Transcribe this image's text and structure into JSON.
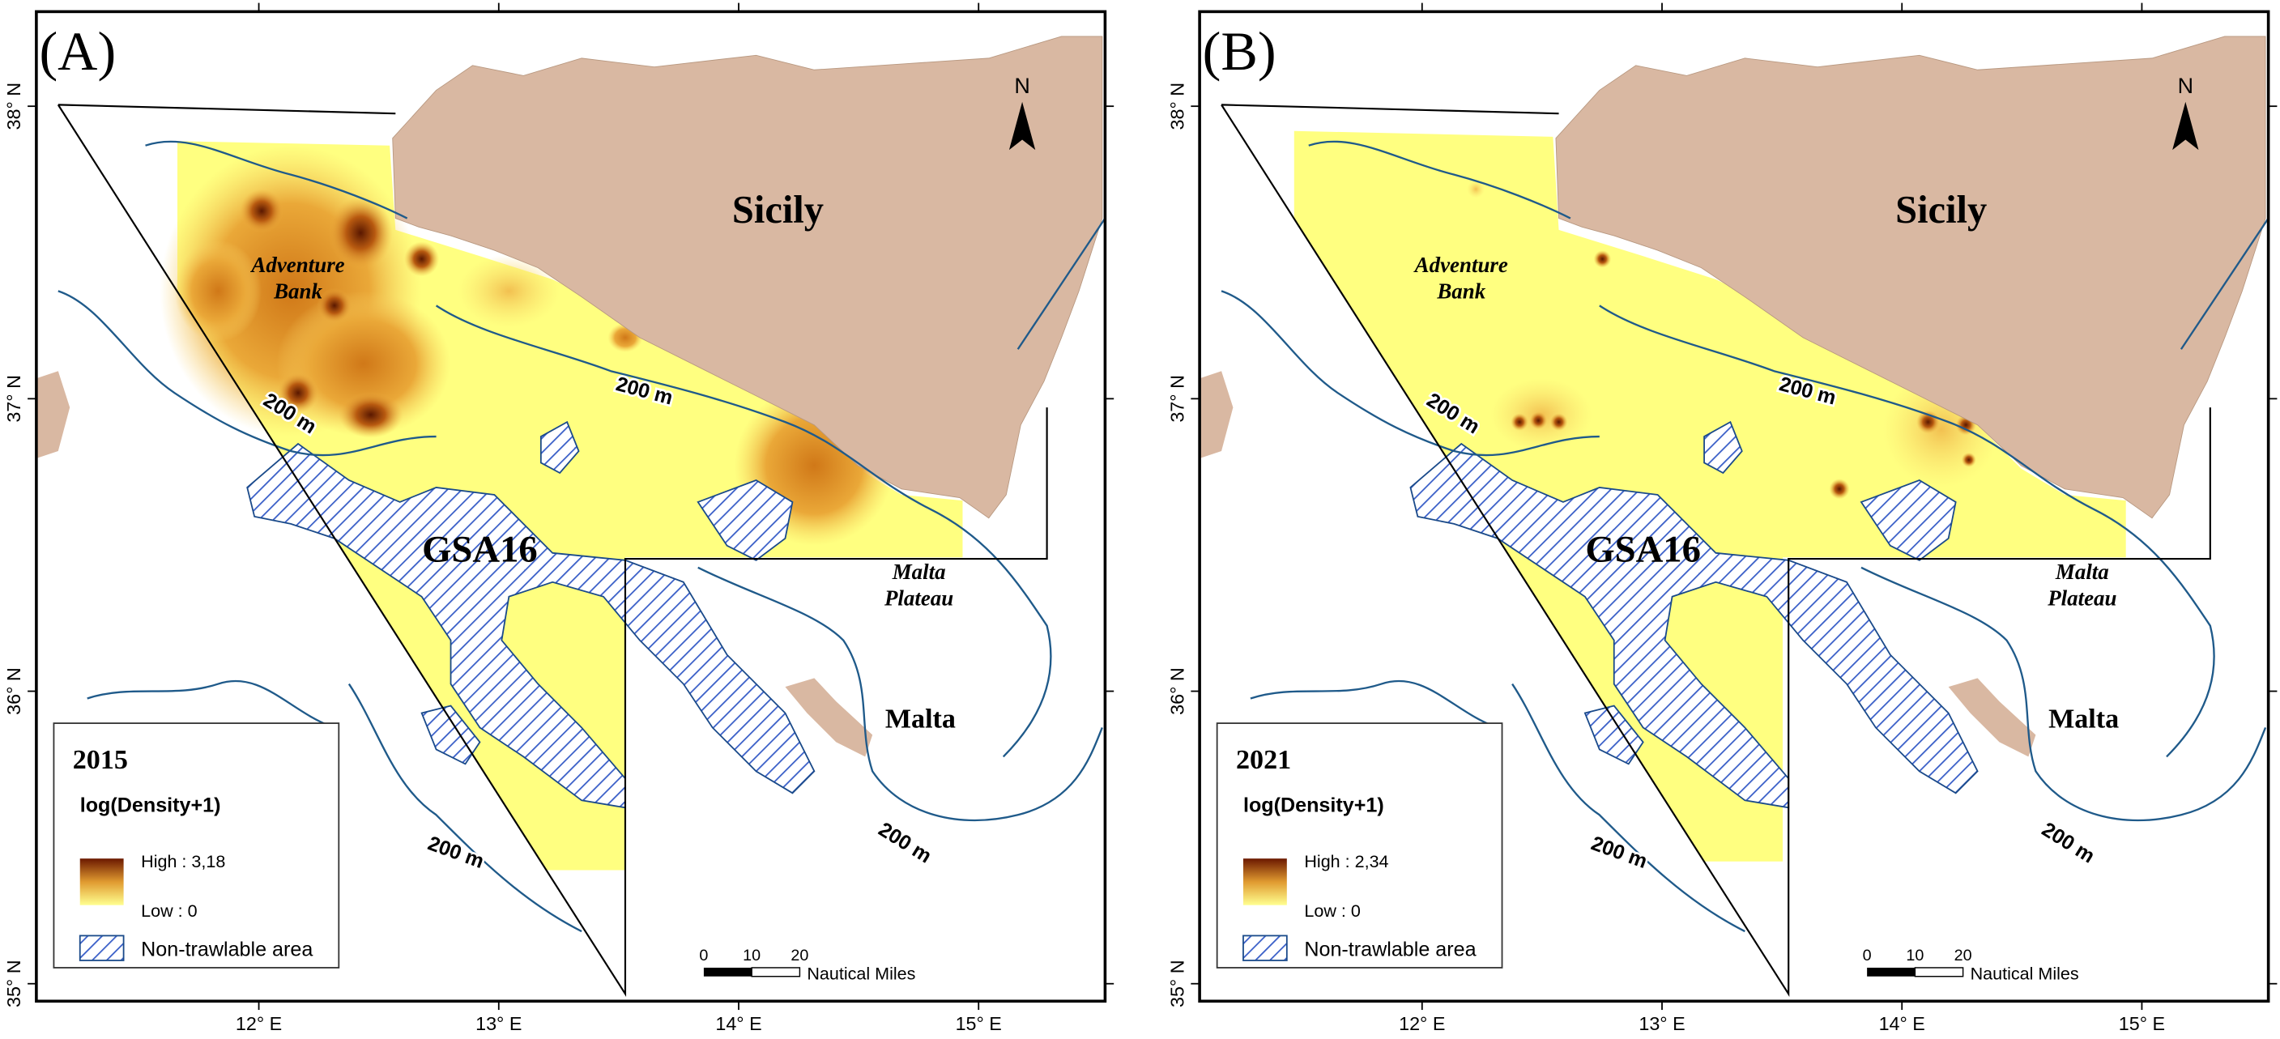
{
  "panels": [
    {
      "letter": "(A)",
      "places": {
        "sicily": "Sicily",
        "bank": [
          "Adventure",
          "Bank"
        ],
        "gsa": "GSA16",
        "plateau": [
          "Malta",
          "Plateau"
        ],
        "malta": "Malta"
      },
      "contours": [
        "200 m",
        "200 m",
        "200 m",
        "200 m"
      ],
      "north": "N",
      "legend": {
        "year": "2015",
        "title": "log(Density+1)",
        "high": "High : 3,18",
        "low": "Low : 0",
        "hatch": "Non-trawlable area"
      },
      "scale": {
        "ticks": [
          "0",
          "10",
          "20"
        ],
        "unit": "Nautical Miles"
      },
      "xticks": [
        {
          "value": 12,
          "label": "12° E"
        },
        {
          "value": 13,
          "label": "13° E"
        },
        {
          "value": 14,
          "label": "14° E"
        },
        {
          "value": 15,
          "label": "15° E"
        }
      ],
      "yticks": [
        {
          "value": 35,
          "label": "35° N"
        },
        {
          "value": 36,
          "label": "36° N"
        },
        {
          "value": 37,
          "label": "37° N"
        },
        {
          "value": 38,
          "label": "38° N"
        }
      ]
    },
    {
      "letter": "(B)",
      "places": {
        "sicily": "Sicily",
        "bank": [
          "Adventure",
          "Bank"
        ],
        "gsa": "GSA16",
        "plateau": [
          "Malta",
          "Plateau"
        ],
        "malta": "Malta"
      },
      "contours": [
        "200 m",
        "200 m",
        "200 m",
        "200 m"
      ],
      "north": "N",
      "legend": {
        "year": "2021",
        "title": "log(Density+1)",
        "high": "High : 2,34",
        "low": "Low : 0",
        "hatch": "Non-trawlable area"
      },
      "scale": {
        "ticks": [
          "0",
          "10",
          "20"
        ],
        "unit": "Nautical Miles"
      },
      "xticks": [
        {
          "value": 12,
          "label": "12° E"
        },
        {
          "value": 13,
          "label": "13° E"
        },
        {
          "value": 14,
          "label": "14° E"
        },
        {
          "value": 15,
          "label": "15° E"
        }
      ],
      "yticks": [
        {
          "value": 35,
          "label": "35° N"
        },
        {
          "value": 36,
          "label": "36° N"
        },
        {
          "value": 37,
          "label": "37° N"
        },
        {
          "value": 38,
          "label": "38° N"
        }
      ]
    }
  ]
}
